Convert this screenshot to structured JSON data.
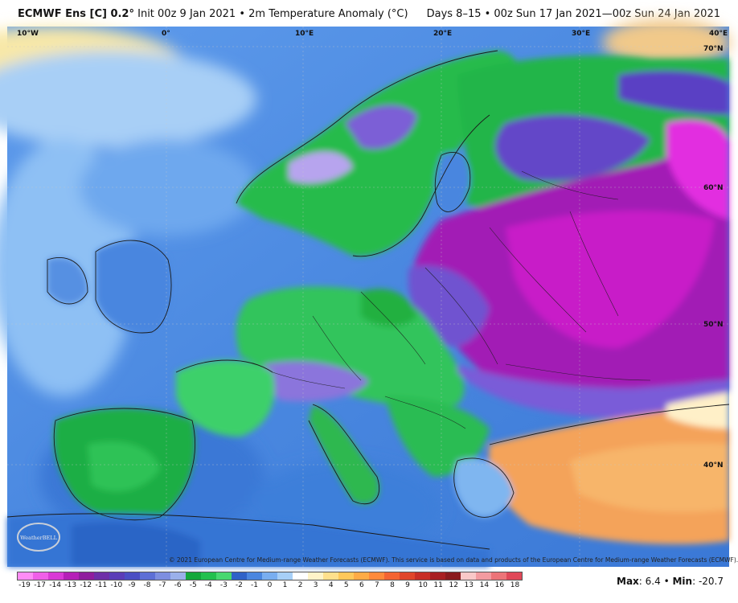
{
  "header": {
    "model": "ECMWF Ens [C] 0.2",
    "degree": "°",
    "init": "Init 00z 9 Jan 2021",
    "separator": "•",
    "field": "2m Temperature Anomaly (°C)",
    "valid_range": "Days 8–15 • 00z Sun 17 Jan 2021—00z Sun 24 Jan 2021"
  },
  "map": {
    "longitude_labels": [
      "10°W",
      "0°",
      "10°E",
      "20°E",
      "30°E",
      "40°E"
    ],
    "latitude_labels": [
      "70°N",
      "60°N",
      "50°N",
      "40°N"
    ],
    "colors": {
      "ocean_light": "#7fb3f2",
      "ocean_mid": "#4f8fe3",
      "ocean_deep": "#2f6fd0",
      "land_cool": "#1fb84a",
      "land_mild": "#3cd06a",
      "cold_purple": "#6a4fd0",
      "very_cold_magenta": "#c21fc2",
      "extreme_cold": "#ff2ff0",
      "warm_orange": "#f4a35a",
      "warm_yellow": "#ffd27a"
    }
  },
  "copyright": "© 2021 European Centre for Medium-range Weather Forecasts (ECMWF). This service is based on data and products of the European Centre for Medium-range Weather Forecasts (ECMWF).",
  "logo_text": "WeatherBELL",
  "colorbar": {
    "ticks": [
      "-19",
      "-17",
      "-14",
      "-13",
      "-12",
      "-11",
      "-10",
      "-9",
      "-8",
      "-7",
      "-6",
      "-5",
      "-4",
      "-3",
      "-2",
      "-1",
      "0",
      "1",
      "2",
      "3",
      "4",
      "5",
      "6",
      "7",
      "8",
      "9",
      "10",
      "11",
      "12",
      "13",
      "14",
      "16",
      "18"
    ],
    "colors": [
      "#ff8cf5",
      "#f05fe8",
      "#d93ad6",
      "#b520b8",
      "#8f1e9e",
      "#6e2fa8",
      "#5a3db8",
      "#4a4ec4",
      "#5d6fd6",
      "#7d8ee0",
      "#9ab0ea",
      "#14a83c",
      "#22c04e",
      "#48d870",
      "#2f62c8",
      "#4a86df",
      "#79aef0",
      "#a7cff7",
      "#ffffff",
      "#fff3c8",
      "#ffe08c",
      "#ffc85a",
      "#ffab45",
      "#ff8a3a",
      "#f46432",
      "#e0452a",
      "#c82e26",
      "#a81f22",
      "#8a1a1e",
      "#fac8c8",
      "#f39ba0",
      "#ec7478",
      "#e04858"
    ]
  },
  "stats": {
    "max_label": "Max",
    "max_value": "6.4",
    "bullet": "•",
    "min_label": "Min",
    "min_value": "-20.7"
  }
}
